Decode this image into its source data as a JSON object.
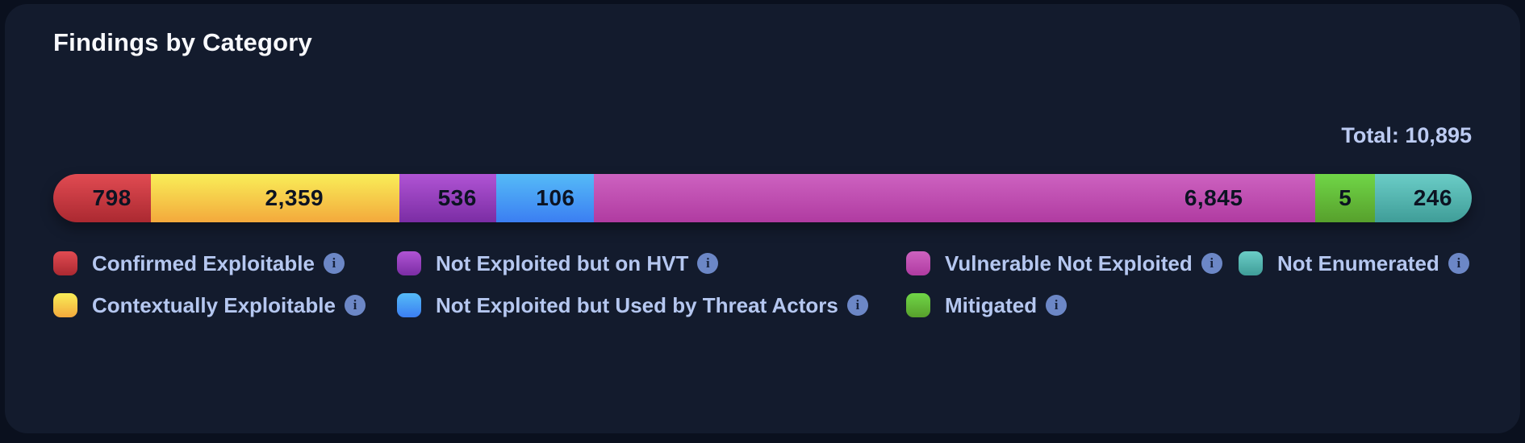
{
  "card": {
    "title": "Findings by Category"
  },
  "chart_data": {
    "type": "bar",
    "subtype": "horizontal-stacked-single-bar",
    "title": "Findings by Category",
    "total": 10895,
    "total_display": "Total: 10,895",
    "colors": {
      "page_background": "#0a101e",
      "card_background": "#131b2d",
      "title_text": "#f8f9fd",
      "label_text": "#b5c7f0",
      "segment_value_text": "#0c1322",
      "info_icon_background": "#6c87c6"
    },
    "segments": [
      {
        "id": "confirmed-exploitable",
        "label": "Confirmed Exploitable",
        "value": 798,
        "display": "798",
        "color_top": "#e14b52",
        "color_bottom": "#ab2931",
        "width_pct": 6.87
      },
      {
        "id": "contextually-exploitable",
        "label": "Contextually Exploitable",
        "value": 2359,
        "display": "2,359",
        "color_top": "#f9ee58",
        "color_bottom": "#f3a93c",
        "width_pct": 17.54
      },
      {
        "id": "not-exploited-but-on-hvt",
        "label": "Not Exploited but on HVT",
        "value": 536,
        "display": "536",
        "color_top": "#b054d4",
        "color_bottom": "#7b2da4",
        "width_pct": 6.81
      },
      {
        "id": "not-exploited-but-used-by-threat-actors",
        "label": "Not Exploited but Used by Threat Actors",
        "value": 106,
        "display": "106",
        "color_top": "#55bbf7",
        "color_bottom": "#3b7ef2",
        "width_pct": 6.92
      },
      {
        "id": "vulnerable-not-exploited",
        "label": "Vulnerable Not Exploited",
        "value": 6845,
        "display": "6,845",
        "color_top": "#cd62c0",
        "color_bottom": "#b03ba1",
        "width_pct": 50.85
      },
      {
        "id": "mitigated",
        "label": "Mitigated",
        "value": 5,
        "display": "5",
        "color_top": "#70d647",
        "color_bottom": "#57a02c",
        "width_pct": 4.2
      },
      {
        "id": "not-enumerated",
        "label": "Not Enumerated",
        "value": 246,
        "display": "246",
        "color_top": "#6bcdc7",
        "color_bottom": "#3f9d98",
        "width_pct": 6.81
      }
    ],
    "legend_columns": [
      [
        0,
        1
      ],
      [
        2,
        3
      ],
      [
        4,
        5
      ],
      [
        6
      ]
    ],
    "legend_info_glyph": "i"
  }
}
